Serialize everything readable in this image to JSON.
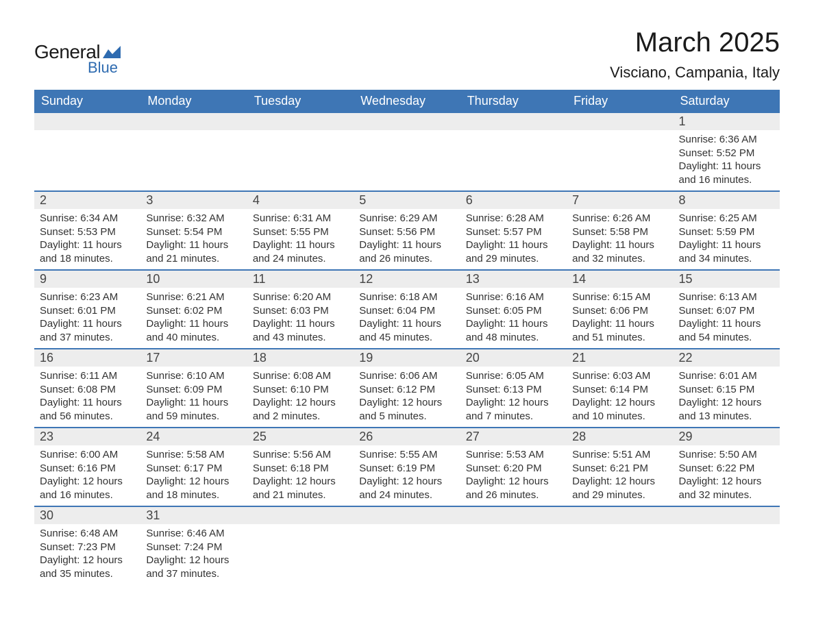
{
  "logo": {
    "text_general": "General",
    "text_blue": "Blue",
    "shape_color": "#2e6bb0"
  },
  "title": "March 2025",
  "location": "Visciano, Campania, Italy",
  "colors": {
    "header_bg": "#3e76b5",
    "header_text": "#ffffff",
    "daynum_bg": "#ededed",
    "row_border": "#3e76b5",
    "text": "#333333",
    "background": "#ffffff"
  },
  "typography": {
    "title_fontsize": 40,
    "location_fontsize": 22,
    "weekday_fontsize": 18,
    "daynum_fontsize": 18,
    "body_fontsize": 15,
    "logo_general_fontsize": 28,
    "logo_blue_fontsize": 22
  },
  "weekdays": [
    "Sunday",
    "Monday",
    "Tuesday",
    "Wednesday",
    "Thursday",
    "Friday",
    "Saturday"
  ],
  "weeks": [
    [
      null,
      null,
      null,
      null,
      null,
      null,
      {
        "day": "1",
        "sunrise": "Sunrise: 6:36 AM",
        "sunset": "Sunset: 5:52 PM",
        "dl1": "Daylight: 11 hours",
        "dl2": "and 16 minutes."
      }
    ],
    [
      {
        "day": "2",
        "sunrise": "Sunrise: 6:34 AM",
        "sunset": "Sunset: 5:53 PM",
        "dl1": "Daylight: 11 hours",
        "dl2": "and 18 minutes."
      },
      {
        "day": "3",
        "sunrise": "Sunrise: 6:32 AM",
        "sunset": "Sunset: 5:54 PM",
        "dl1": "Daylight: 11 hours",
        "dl2": "and 21 minutes."
      },
      {
        "day": "4",
        "sunrise": "Sunrise: 6:31 AM",
        "sunset": "Sunset: 5:55 PM",
        "dl1": "Daylight: 11 hours",
        "dl2": "and 24 minutes."
      },
      {
        "day": "5",
        "sunrise": "Sunrise: 6:29 AM",
        "sunset": "Sunset: 5:56 PM",
        "dl1": "Daylight: 11 hours",
        "dl2": "and 26 minutes."
      },
      {
        "day": "6",
        "sunrise": "Sunrise: 6:28 AM",
        "sunset": "Sunset: 5:57 PM",
        "dl1": "Daylight: 11 hours",
        "dl2": "and 29 minutes."
      },
      {
        "day": "7",
        "sunrise": "Sunrise: 6:26 AM",
        "sunset": "Sunset: 5:58 PM",
        "dl1": "Daylight: 11 hours",
        "dl2": "and 32 minutes."
      },
      {
        "day": "8",
        "sunrise": "Sunrise: 6:25 AM",
        "sunset": "Sunset: 5:59 PM",
        "dl1": "Daylight: 11 hours",
        "dl2": "and 34 minutes."
      }
    ],
    [
      {
        "day": "9",
        "sunrise": "Sunrise: 6:23 AM",
        "sunset": "Sunset: 6:01 PM",
        "dl1": "Daylight: 11 hours",
        "dl2": "and 37 minutes."
      },
      {
        "day": "10",
        "sunrise": "Sunrise: 6:21 AM",
        "sunset": "Sunset: 6:02 PM",
        "dl1": "Daylight: 11 hours",
        "dl2": "and 40 minutes."
      },
      {
        "day": "11",
        "sunrise": "Sunrise: 6:20 AM",
        "sunset": "Sunset: 6:03 PM",
        "dl1": "Daylight: 11 hours",
        "dl2": "and 43 minutes."
      },
      {
        "day": "12",
        "sunrise": "Sunrise: 6:18 AM",
        "sunset": "Sunset: 6:04 PM",
        "dl1": "Daylight: 11 hours",
        "dl2": "and 45 minutes."
      },
      {
        "day": "13",
        "sunrise": "Sunrise: 6:16 AM",
        "sunset": "Sunset: 6:05 PM",
        "dl1": "Daylight: 11 hours",
        "dl2": "and 48 minutes."
      },
      {
        "day": "14",
        "sunrise": "Sunrise: 6:15 AM",
        "sunset": "Sunset: 6:06 PM",
        "dl1": "Daylight: 11 hours",
        "dl2": "and 51 minutes."
      },
      {
        "day": "15",
        "sunrise": "Sunrise: 6:13 AM",
        "sunset": "Sunset: 6:07 PM",
        "dl1": "Daylight: 11 hours",
        "dl2": "and 54 minutes."
      }
    ],
    [
      {
        "day": "16",
        "sunrise": "Sunrise: 6:11 AM",
        "sunset": "Sunset: 6:08 PM",
        "dl1": "Daylight: 11 hours",
        "dl2": "and 56 minutes."
      },
      {
        "day": "17",
        "sunrise": "Sunrise: 6:10 AM",
        "sunset": "Sunset: 6:09 PM",
        "dl1": "Daylight: 11 hours",
        "dl2": "and 59 minutes."
      },
      {
        "day": "18",
        "sunrise": "Sunrise: 6:08 AM",
        "sunset": "Sunset: 6:10 PM",
        "dl1": "Daylight: 12 hours",
        "dl2": "and 2 minutes."
      },
      {
        "day": "19",
        "sunrise": "Sunrise: 6:06 AM",
        "sunset": "Sunset: 6:12 PM",
        "dl1": "Daylight: 12 hours",
        "dl2": "and 5 minutes."
      },
      {
        "day": "20",
        "sunrise": "Sunrise: 6:05 AM",
        "sunset": "Sunset: 6:13 PM",
        "dl1": "Daylight: 12 hours",
        "dl2": "and 7 minutes."
      },
      {
        "day": "21",
        "sunrise": "Sunrise: 6:03 AM",
        "sunset": "Sunset: 6:14 PM",
        "dl1": "Daylight: 12 hours",
        "dl2": "and 10 minutes."
      },
      {
        "day": "22",
        "sunrise": "Sunrise: 6:01 AM",
        "sunset": "Sunset: 6:15 PM",
        "dl1": "Daylight: 12 hours",
        "dl2": "and 13 minutes."
      }
    ],
    [
      {
        "day": "23",
        "sunrise": "Sunrise: 6:00 AM",
        "sunset": "Sunset: 6:16 PM",
        "dl1": "Daylight: 12 hours",
        "dl2": "and 16 minutes."
      },
      {
        "day": "24",
        "sunrise": "Sunrise: 5:58 AM",
        "sunset": "Sunset: 6:17 PM",
        "dl1": "Daylight: 12 hours",
        "dl2": "and 18 minutes."
      },
      {
        "day": "25",
        "sunrise": "Sunrise: 5:56 AM",
        "sunset": "Sunset: 6:18 PM",
        "dl1": "Daylight: 12 hours",
        "dl2": "and 21 minutes."
      },
      {
        "day": "26",
        "sunrise": "Sunrise: 5:55 AM",
        "sunset": "Sunset: 6:19 PM",
        "dl1": "Daylight: 12 hours",
        "dl2": "and 24 minutes."
      },
      {
        "day": "27",
        "sunrise": "Sunrise: 5:53 AM",
        "sunset": "Sunset: 6:20 PM",
        "dl1": "Daylight: 12 hours",
        "dl2": "and 26 minutes."
      },
      {
        "day": "28",
        "sunrise": "Sunrise: 5:51 AM",
        "sunset": "Sunset: 6:21 PM",
        "dl1": "Daylight: 12 hours",
        "dl2": "and 29 minutes."
      },
      {
        "day": "29",
        "sunrise": "Sunrise: 5:50 AM",
        "sunset": "Sunset: 6:22 PM",
        "dl1": "Daylight: 12 hours",
        "dl2": "and 32 minutes."
      }
    ],
    [
      {
        "day": "30",
        "sunrise": "Sunrise: 6:48 AM",
        "sunset": "Sunset: 7:23 PM",
        "dl1": "Daylight: 12 hours",
        "dl2": "and 35 minutes."
      },
      {
        "day": "31",
        "sunrise": "Sunrise: 6:46 AM",
        "sunset": "Sunset: 7:24 PM",
        "dl1": "Daylight: 12 hours",
        "dl2": "and 37 minutes."
      },
      null,
      null,
      null,
      null,
      null
    ]
  ]
}
